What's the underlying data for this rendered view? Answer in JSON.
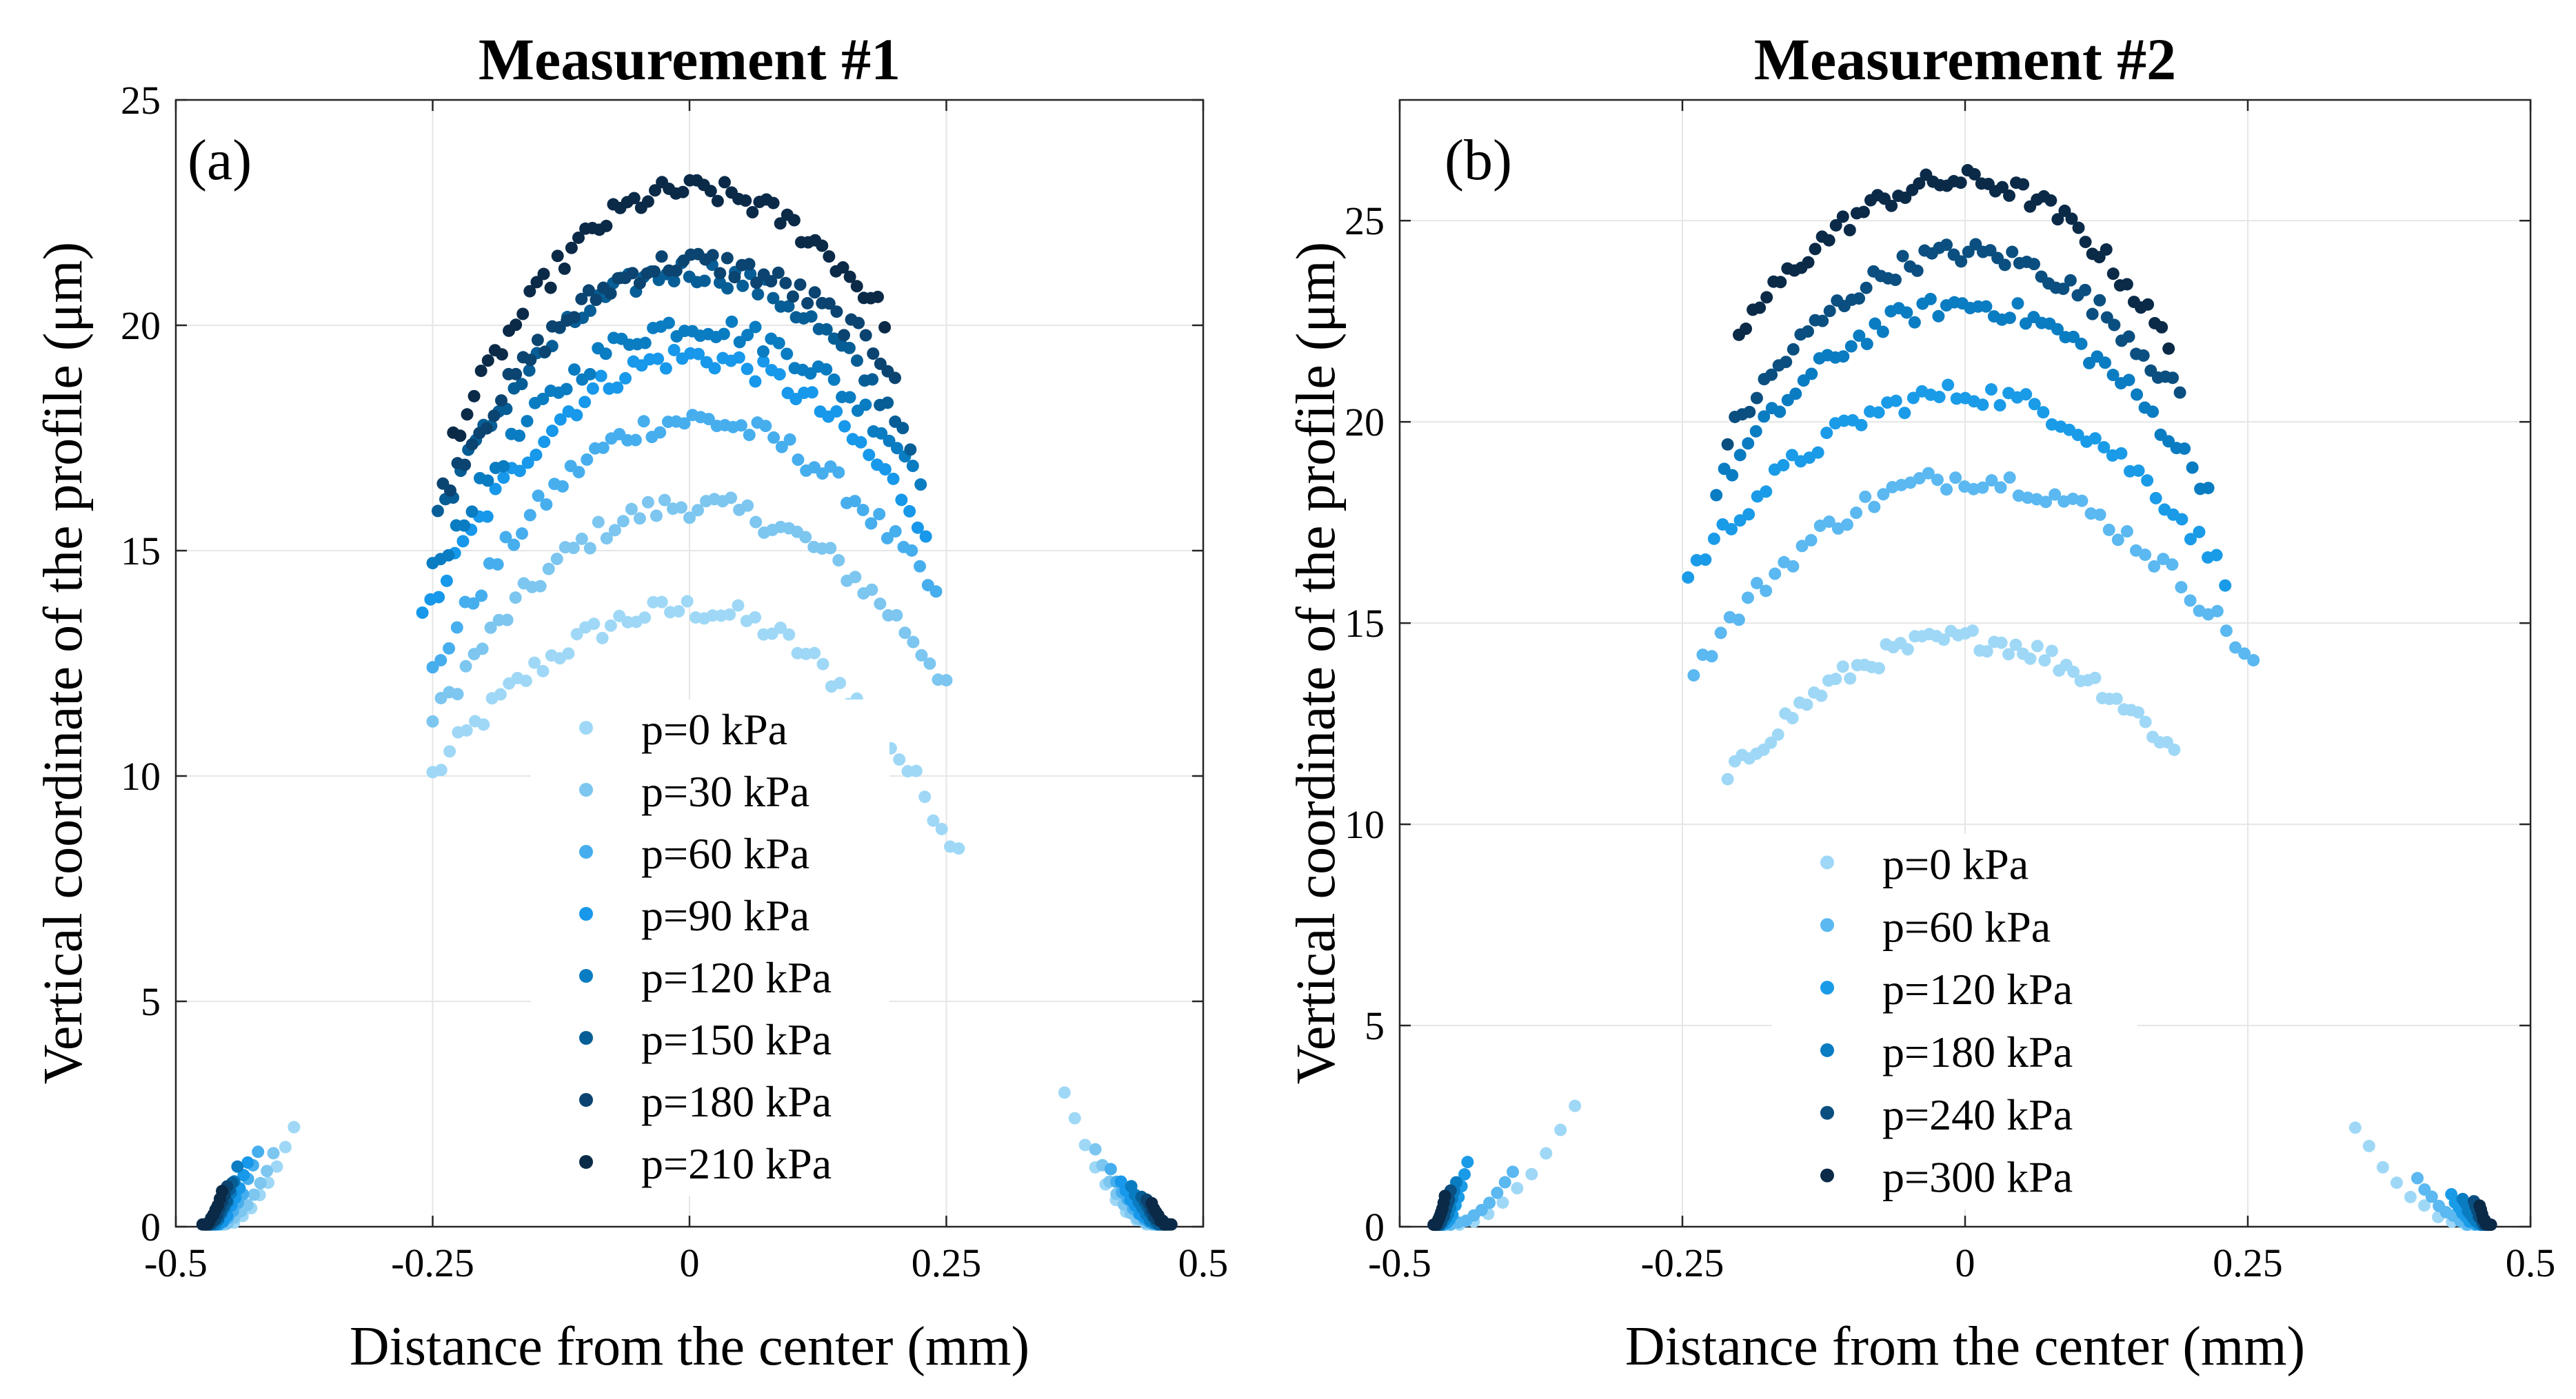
{
  "chart_data": [
    {
      "type": "scatter",
      "panel_label": "(a)",
      "title": "Measurement #1",
      "xlabel": "Distance from the center (mm)",
      "ylabel": "Vertical coordinate of the profile (μm)",
      "xlim": [
        -0.5,
        0.5
      ],
      "ylim": [
        0,
        25
      ],
      "xticks": [
        -0.5,
        -0.25,
        0,
        0.25,
        0.5
      ],
      "xtick_labels": [
        "-0.5",
        "-0.25",
        "0",
        "0.25",
        "0.5"
      ],
      "yticks": [
        0,
        5,
        10,
        15,
        20,
        25
      ],
      "ytick_labels": [
        "0",
        "5",
        "10",
        "15",
        "20",
        "25"
      ],
      "grid": true,
      "legend_position": "lower-center",
      "series": [
        {
          "name": "p=0 kPa",
          "color": "#9fd8f6",
          "apex": 13.7,
          "half_width": 0.25,
          "edge": 10.0,
          "right_half_width": 0.262,
          "right_edge": 8.3,
          "foot_inner": 0.385,
          "foot_top": 2.2,
          "foot_right_inner": 0.365,
          "foot_right_top": 3.0
        },
        {
          "name": "p=30 kPa",
          "color": "#7cc6f0",
          "apex": 16.0,
          "half_width": 0.25,
          "edge": 11.2,
          "right_half_width": 0.25,
          "right_edge": 12.1,
          "foot_inner": 0.405,
          "foot_top": 1.6,
          "foot_right_inner": 0.395,
          "foot_right_top": 1.7
        },
        {
          "name": "p=60 kPa",
          "color": "#47aeee",
          "apex": 17.9,
          "half_width": 0.25,
          "edge": 12.3,
          "right_half_width": 0.24,
          "right_edge": 14.0,
          "foot_inner": 0.42,
          "foot_top": 1.7,
          "foot_right_inner": 0.41,
          "foot_right_top": 1.3
        },
        {
          "name": "p=90 kPa",
          "color": "#1798ea",
          "apex": 19.3,
          "half_width": 0.26,
          "edge": 13.4,
          "right_half_width": 0.23,
          "right_edge": 15.5,
          "foot_inner": 0.43,
          "foot_top": 1.4,
          "foot_right_inner": 0.42,
          "foot_right_top": 1.0
        },
        {
          "name": "p=120 kPa",
          "color": "#0a7cc2",
          "apex": 20.0,
          "half_width": 0.25,
          "edge": 14.5,
          "right_half_width": 0.225,
          "right_edge": 16.7,
          "foot_inner": 0.44,
          "foot_top": 1.3,
          "foot_right_inner": 0.43,
          "foot_right_top": 0.9
        },
        {
          "name": "p=150 kPa",
          "color": "#075e96",
          "apex": 21.2,
          "half_width": 0.245,
          "edge": 15.8,
          "right_half_width": 0.215,
          "right_edge": 17.5,
          "foot_inner": 0.445,
          "foot_top": 1.0,
          "foot_right_inner": 0.44,
          "foot_right_top": 0.7
        },
        {
          "name": "p=180 kPa",
          "color": "#0b4470",
          "apex": 21.4,
          "half_width": 0.24,
          "edge": 16.3,
          "right_half_width": 0.2,
          "right_edge": 19.0,
          "foot_inner": 0.45,
          "foot_top": 0.9,
          "foot_right_inner": 0.445,
          "foot_right_top": 0.6
        },
        {
          "name": "p=210 kPa",
          "color": "#0a2a48",
          "apex": 23.0,
          "half_width": 0.23,
          "edge": 17.5,
          "right_half_width": 0.19,
          "right_edge": 20.2,
          "foot_inner": 0.455,
          "foot_top": 0.8,
          "foot_right_inner": 0.45,
          "foot_right_top": 0.5
        }
      ]
    },
    {
      "type": "scatter",
      "panel_label": "(b)",
      "title": "Measurement #2",
      "xlabel": "Distance from the center (mm)",
      "ylabel": "Vertical coordinate of the profile (μm)",
      "xlim": [
        -0.5,
        0.5
      ],
      "ylim": [
        0,
        28
      ],
      "xticks": [
        -0.5,
        -0.25,
        0,
        0.25,
        0.5
      ],
      "xtick_labels": [
        "-0.5",
        "-0.25",
        "0",
        "0.25",
        "0.5"
      ],
      "yticks": [
        0,
        5,
        10,
        15,
        20,
        25
      ],
      "ytick_labels": [
        "0",
        "5",
        "10",
        "15",
        "20",
        "25"
      ],
      "grid": true,
      "legend_position": "lower-center",
      "series": [
        {
          "name": "p=0 kPa",
          "color": "#9fd8f6",
          "apex": 14.6,
          "half_width": 0.21,
          "edge": 11.1,
          "right_half_width": 0.185,
          "right_edge": 11.8,
          "foot_inner": 0.345,
          "foot_top": 3.0,
          "foot_right_inner": 0.345,
          "foot_right_top": 2.5
        },
        {
          "name": "p=60 kPa",
          "color": "#5bb8f0",
          "apex": 18.6,
          "half_width": 0.24,
          "edge": 13.8,
          "right_half_width": 0.255,
          "right_edge": 14.0,
          "foot_inner": 0.4,
          "foot_top": 1.4,
          "foot_right_inner": 0.4,
          "foot_right_top": 1.2
        },
        {
          "name": "p=120 kPa",
          "color": "#1a9be8",
          "apex": 20.7,
          "half_width": 0.245,
          "edge": 16.2,
          "right_half_width": 0.23,
          "right_edge": 16.2,
          "foot_inner": 0.44,
          "foot_top": 1.6,
          "foot_right_inner": 0.43,
          "foot_right_top": 0.8
        },
        {
          "name": "p=180 kPa",
          "color": "#0a7cc2",
          "apex": 22.9,
          "half_width": 0.22,
          "edge": 18.3,
          "right_half_width": 0.215,
          "right_edge": 18.3,
          "foot_inner": 0.45,
          "foot_top": 1.1,
          "foot_right_inner": 0.44,
          "foot_right_top": 0.7
        },
        {
          "name": "p=240 kPa",
          "color": "#0b4f80",
          "apex": 24.2,
          "half_width": 0.21,
          "edge": 19.6,
          "right_half_width": 0.19,
          "right_edge": 20.6,
          "foot_inner": 0.455,
          "foot_top": 0.9,
          "foot_right_inner": 0.45,
          "foot_right_top": 0.6
        },
        {
          "name": "p=300 kPa",
          "color": "#0a2a48",
          "apex": 26.0,
          "half_width": 0.2,
          "edge": 22.2,
          "right_half_width": 0.18,
          "right_edge": 21.9,
          "foot_inner": 0.46,
          "foot_top": 0.8,
          "foot_right_inner": 0.455,
          "foot_right_top": 0.5
        }
      ]
    }
  ]
}
